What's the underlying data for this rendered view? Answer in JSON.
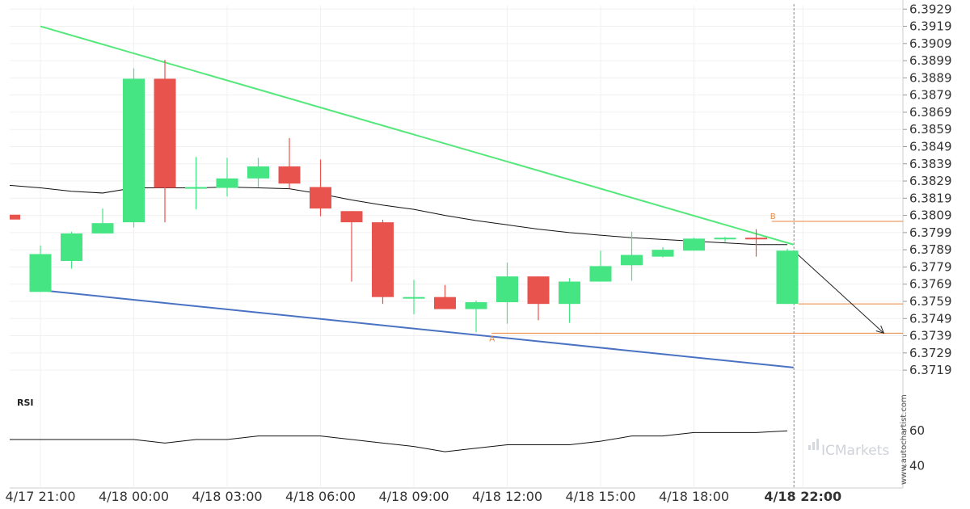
{
  "chart_data": {
    "type": "candlestick",
    "y_ticks": [
      "6.3929",
      "6.3919",
      "6.3909",
      "6.3899",
      "6.3889",
      "6.3879",
      "6.3869",
      "6.3859",
      "6.3849",
      "6.3839",
      "6.3829",
      "6.3819",
      "6.3809",
      "6.3799",
      "6.3789",
      "6.3779",
      "6.3769",
      "6.3759",
      "6.3749",
      "6.3739",
      "6.3729",
      "6.3719"
    ],
    "ylim": [
      6.3712,
      6.3931
    ],
    "x_ticks": [
      "4/17 21:00",
      "4/18 00:00",
      "4/18 03:00",
      "4/18 06:00",
      "4/18 09:00",
      "4/18 12:00",
      "4/18 15:00",
      "4/18 18:00",
      "4/18 22:00"
    ],
    "x_tick_index": [
      0,
      3,
      6,
      9,
      12,
      15,
      18,
      21,
      24.5
    ],
    "candles": [
      {
        "o": 6.37645,
        "h": 6.37915,
        "l": 6.37645,
        "c": 6.37865
      },
      {
        "o": 6.37825,
        "h": 6.37995,
        "l": 6.3778,
        "c": 6.37985
      },
      {
        "o": 6.37985,
        "h": 6.3813,
        "l": 6.37985,
        "c": 6.38045
      },
      {
        "o": 6.3805,
        "h": 6.38945,
        "l": 6.3802,
        "c": 6.38885
      },
      {
        "o": 6.38885,
        "h": 6.38995,
        "l": 6.3805,
        "c": 6.3825
      },
      {
        "o": 6.38245,
        "h": 6.3843,
        "l": 6.38125,
        "c": 6.38255
      },
      {
        "o": 6.3825,
        "h": 6.38425,
        "l": 6.382,
        "c": 6.38305
      },
      {
        "o": 6.38305,
        "h": 6.38425,
        "l": 6.38255,
        "c": 6.38375
      },
      {
        "o": 6.38375,
        "h": 6.3854,
        "l": 6.38245,
        "c": 6.38275
      },
      {
        "o": 6.38255,
        "h": 6.38415,
        "l": 6.38085,
        "c": 6.3813
      },
      {
        "o": 6.38115,
        "h": 6.38115,
        "l": 6.37705,
        "c": 6.3805
      },
      {
        "o": 6.3805,
        "h": 6.38065,
        "l": 6.37575,
        "c": 6.37615
      },
      {
        "o": 6.37615,
        "h": 6.37715,
        "l": 6.37515,
        "c": 6.37615
      },
      {
        "o": 6.37615,
        "h": 6.37685,
        "l": 6.37545,
        "c": 6.37545
      },
      {
        "o": 6.37545,
        "h": 6.37595,
        "l": 6.3741,
        "c": 6.37585
      },
      {
        "o": 6.37585,
        "h": 6.37815,
        "l": 6.3746,
        "c": 6.37735
      },
      {
        "o": 6.37735,
        "h": 6.37735,
        "l": 6.3748,
        "c": 6.37575
      },
      {
        "o": 6.37575,
        "h": 6.37725,
        "l": 6.37465,
        "c": 6.37705
      },
      {
        "o": 6.37705,
        "h": 6.37885,
        "l": 6.37705,
        "c": 6.37795
      },
      {
        "o": 6.378,
        "h": 6.37995,
        "l": 6.3771,
        "c": 6.3786
      },
      {
        "o": 6.3785,
        "h": 6.37905,
        "l": 6.37845,
        "c": 6.3789
      },
      {
        "o": 6.37885,
        "h": 6.3796,
        "l": 6.37885,
        "c": 6.37955
      },
      {
        "o": 6.3796,
        "h": 6.37965,
        "l": 6.37935,
        "c": 6.3796
      },
      {
        "o": 6.3796,
        "h": 6.3801,
        "l": 6.3785,
        "c": 6.37955
      },
      {
        "o": 6.37575,
        "h": 6.37895,
        "l": 6.37575,
        "c": 6.37885
      }
    ],
    "ma": [
      6.3825,
      6.3823,
      6.3822,
      6.3825,
      6.3825,
      6.3825,
      6.38255,
      6.3825,
      6.38245,
      6.38215,
      6.3818,
      6.3815,
      6.38125,
      6.3809,
      6.3806,
      6.38035,
      6.3801,
      6.3799,
      6.37975,
      6.3796,
      6.3795,
      6.3794,
      6.3793,
      6.3792,
      6.3792
    ],
    "ma_pre": 6.38265,
    "upper_trendline": {
      "start": [
        0,
        6.3919
      ],
      "end": [
        24.2,
        6.3792
      ]
    },
    "lower_trendline": {
      "start": [
        0,
        6.37655
      ],
      "end": [
        24.2,
        6.37205
      ]
    },
    "level_b": {
      "label": "B",
      "value": 6.38055,
      "x_start": 23.5
    },
    "level_a": {
      "label": "A",
      "value": 6.37405,
      "x_start": 14.5
    },
    "close_level": {
      "value": 6.37575
    },
    "projection_arrow": {
      "from": [
        24.2,
        6.37885
      ],
      "to": [
        27.1,
        6.37405
      ]
    },
    "left_marker": {
      "value": 6.3808
    },
    "colors": {
      "up": "#45e584",
      "down": "#e8544d",
      "upper_line": "#54e87a",
      "lower_line": "#4a72c2",
      "ma": "#111111",
      "levels": "#e8843c"
    },
    "rsi": {
      "label": "RSI",
      "y_ticks": [
        "60",
        "40"
      ],
      "ylim": [
        30,
        80
      ],
      "values": [
        55,
        55,
        55,
        55,
        53,
        55,
        55,
        57,
        57,
        57,
        55,
        53,
        51,
        48,
        50,
        52,
        52,
        52,
        54,
        57,
        57,
        59,
        59,
        59,
        60
      ],
      "pre": 55
    },
    "grid": true,
    "watermark": "ICMarkets",
    "site": "www.autochartist.com"
  }
}
